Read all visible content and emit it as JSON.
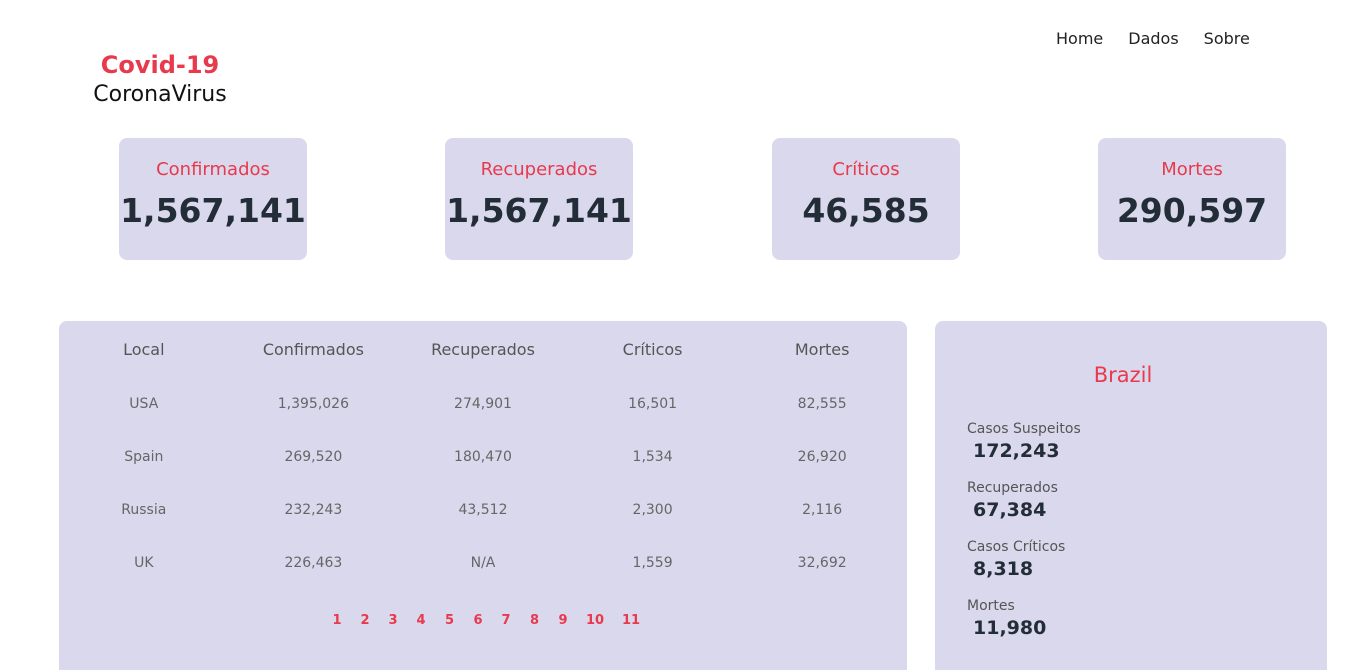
{
  "logo": {
    "title": "Covid-19",
    "subtitle": "CoronaVirus"
  },
  "nav": [
    "Home",
    "Dados",
    "Sobre"
  ],
  "summary": [
    {
      "label": "Confirmados",
      "value": "1,567,141"
    },
    {
      "label": "Recuperados",
      "value": "1,567,141"
    },
    {
      "label": "Críticos",
      "value": "46,585"
    },
    {
      "label": "Mortes",
      "value": "290,597"
    }
  ],
  "table": {
    "headers": [
      "Local",
      "Confirmados",
      "Recuperados",
      "Críticos",
      "Mortes"
    ],
    "rows": [
      [
        "USA",
        "1,395,026",
        "274,901",
        "16,501",
        "82,555"
      ],
      [
        "Spain",
        "269,520",
        "180,470",
        "1,534",
        "26,920"
      ],
      [
        "Russia",
        "232,243",
        "43,512",
        "2,300",
        "2,116"
      ],
      [
        "UK",
        "226,463",
        "N/A",
        "1,559",
        "32,692"
      ]
    ],
    "pages": [
      "1",
      "2",
      "3",
      "4",
      "5",
      "6",
      "7",
      "8",
      "9",
      "10",
      "11"
    ]
  },
  "brazil": {
    "title": "Brazil",
    "stats": [
      {
        "label": "Casos Suspeitos",
        "value": "172,243"
      },
      {
        "label": "Recuperados",
        "value": "67,384"
      },
      {
        "label": "Casos Críticos",
        "value": "8,318"
      },
      {
        "label": "Mortes",
        "value": "11,980"
      }
    ]
  },
  "colors": {
    "accent": "#e8394d",
    "panel": "#dad8ec",
    "value": "#222d37"
  }
}
